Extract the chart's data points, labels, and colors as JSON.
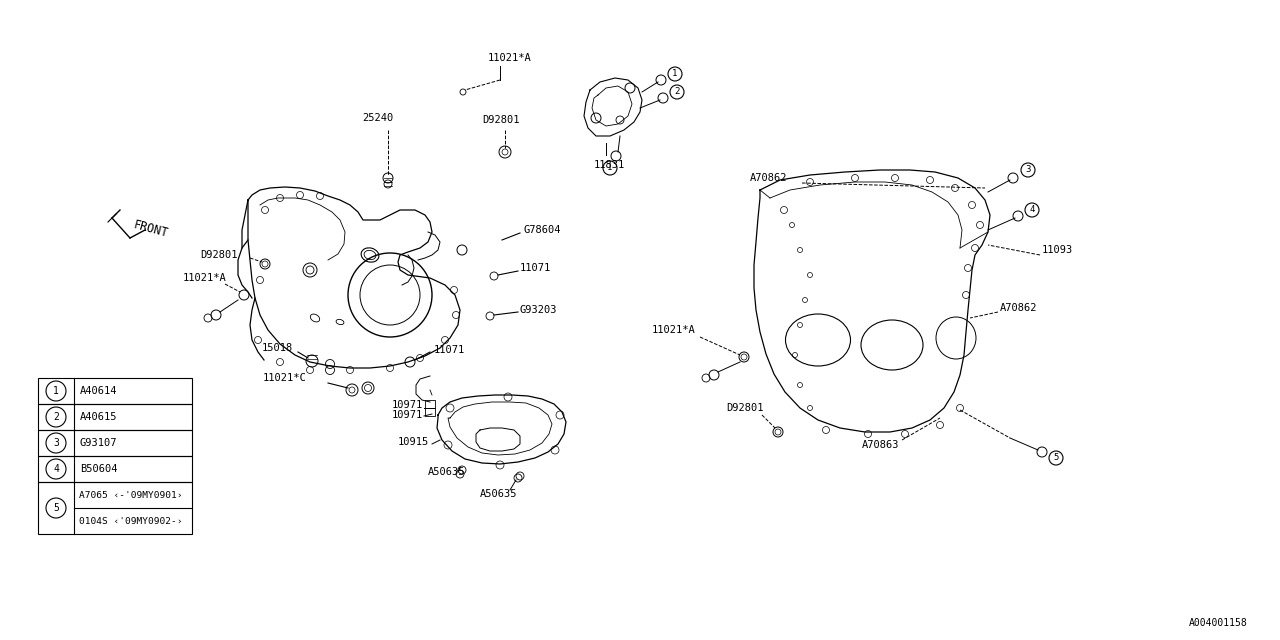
{
  "bg_color": "#ffffff",
  "line_color": "#000000",
  "fig_width": 12.8,
  "fig_height": 6.4,
  "watermark": "A004001158",
  "front_label": "FRONT",
  "legend_items": [
    {
      "num": "1",
      "part": "A40614"
    },
    {
      "num": "2",
      "part": "A40615"
    },
    {
      "num": "3",
      "part": "G93107"
    },
    {
      "num": "4",
      "part": "B50604"
    },
    {
      "num": "5",
      "part_a": "A7065 <-'09MY0901>",
      "part_b": "0104S <'09MY0902->"
    }
  ],
  "label_fontsize": 7.5,
  "legend_fontsize": 7.5
}
